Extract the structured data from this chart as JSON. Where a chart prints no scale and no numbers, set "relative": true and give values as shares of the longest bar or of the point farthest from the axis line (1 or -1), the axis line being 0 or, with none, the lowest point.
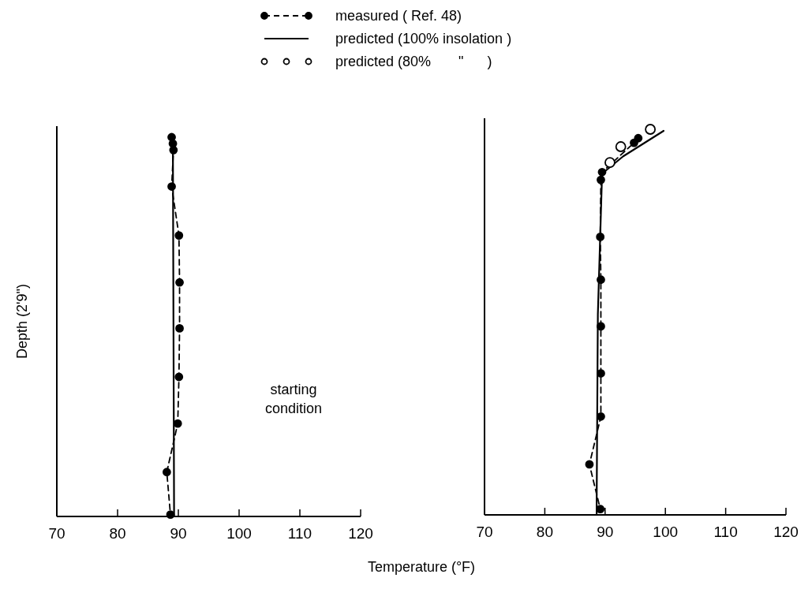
{
  "chart_data": [
    {
      "type": "line",
      "xlabel": "Temperature (°F)",
      "ylabel": "Depth (2'9\")",
      "relative": true,
      "xlim": [
        70,
        120
      ],
      "xticks": [
        70,
        80,
        90,
        100,
        110,
        120
      ],
      "tick_labels": "x",
      "legend": false,
      "annotations": [
        "starting condition"
      ],
      "series": [
        {
          "color": "#000000",
          "line_style": "dashed",
          "marker": "circle",
          "x": [
            88.9,
            89.1,
            89.2,
            88.9,
            90.1,
            90.2,
            90.2,
            90.1,
            89.9,
            88.1,
            88.7
          ],
          "values": [
            1.0,
            0.983,
            0.966,
            0.87,
            0.741,
            0.617,
            0.496,
            0.368,
            0.245,
            0.117,
            0.005
          ]
        },
        {
          "color": "#000000",
          "line_style": "solid",
          "marker": "none",
          "x": [
            89.1,
            89.2,
            89.3
          ],
          "values": [
            0.99,
            0.5,
            0
          ]
        }
      ]
    },
    {
      "type": "line",
      "relative": true,
      "xlim": [
        70,
        120
      ],
      "xticks": [
        70,
        80,
        90,
        100,
        110,
        120
      ],
      "tick_labels": "x",
      "legend": "top",
      "series": [
        {
          "name": "measured ( Ref. 48)",
          "color": "#000000",
          "line_style": "dashed",
          "marker": "circle",
          "x": [
            95.5,
            94.8,
            89.5,
            89.3,
            89.2,
            89.3,
            89.3,
            89.3,
            89.3,
            87.4,
            89.2
          ],
          "values": [
            0.977,
            0.965,
            0.889,
            0.869,
            0.721,
            0.61,
            0.489,
            0.367,
            0.255,
            0.131,
            0.015
          ]
        },
        {
          "name": "predicted (100% insolation )",
          "color": "#000000",
          "line_style": "solid",
          "marker": "none",
          "x": [
            99.7,
            93,
            89.5,
            88.8,
            88.6,
            88.6
          ],
          "values": [
            0.996,
            0.93,
            0.885,
            0.52,
            0.027,
            0
          ]
        },
        {
          "name": "predicted (80%       \"      )",
          "type": "scatter",
          "color": "#000000",
          "marker": "circle",
          "x": [
            97.5,
            92.6,
            90.8
          ],
          "values": [
            1,
            0.955,
            0.914
          ]
        }
      ]
    }
  ]
}
